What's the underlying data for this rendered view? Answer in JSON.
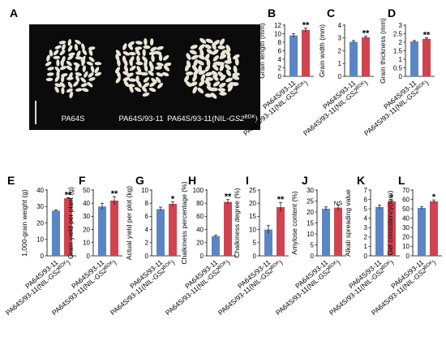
{
  "colors": {
    "blue": "#5b86c4",
    "red": "#d1434f",
    "axis": "#000000",
    "photo_bg": "#0b0b0b",
    "grain": "#e9e6d8"
  },
  "photo": {
    "panel_letter": "A",
    "labels": [
      "PA64S",
      "PA64S/93-11",
      "PA64S/93-11(NIL-"
    ],
    "gene": "GS2",
    "allele": "BDK",
    "label_close": ")"
  },
  "cat_labels": {
    "a": "PA64S/93-11",
    "b_prefix": "PA64S/93-11(NIL-",
    "gene": "GS2",
    "allele": "BDK",
    "b_suffix": ")"
  },
  "chart_data": [
    {
      "panel": "B",
      "type": "bar",
      "ylabel": "Grain length (mm)",
      "ylim": [
        0,
        12
      ],
      "yticks": [
        0,
        2,
        4,
        6,
        8,
        10,
        12
      ],
      "categories": [
        "PA64S/93-11",
        "PA64S/93-11(NIL-GS2BDK)"
      ],
      "values": [
        9.6,
        10.9
      ],
      "errors": [
        0.4,
        0.4
      ],
      "significance": "**"
    },
    {
      "panel": "C",
      "type": "bar",
      "ylabel": "Grain width (mm)",
      "ylim": [
        0,
        4
      ],
      "yticks": [
        0,
        1,
        2,
        3,
        4
      ],
      "categories": [
        "PA64S/93-11",
        "PA64S/93-11(NIL-GS2BDK)"
      ],
      "values": [
        2.7,
        3.05
      ],
      "errors": [
        0.1,
        0.1
      ],
      "significance": "**"
    },
    {
      "panel": "D",
      "type": "bar",
      "ylabel": "Grain thickness (mm)",
      "ylim": [
        0,
        3
      ],
      "yticks": [
        0,
        0.5,
        1,
        1.5,
        2,
        2.5,
        3
      ],
      "categories": [
        "PA64S/93-11",
        "PA64S/93-11(NIL-GS2BDK)"
      ],
      "values": [
        2.05,
        2.2
      ],
      "errors": [
        0.05,
        0.07
      ],
      "significance": "**"
    },
    {
      "panel": "E",
      "type": "bar",
      "ylabel": "1,000-grain weight (g)",
      "ylim": [
        0,
        40
      ],
      "yticks": [
        0,
        10,
        20,
        30,
        40
      ],
      "categories": [
        "PA64S/93-11",
        "PA64S/93-11(NIL-GS2BDK)"
      ],
      "values": [
        27.5,
        35
      ],
      "errors": [
        0.3,
        0.4
      ],
      "significance": "**"
    },
    {
      "panel": "F",
      "type": "bar",
      "ylabel": "Grain yield per plant (g)",
      "ylim": [
        0,
        50
      ],
      "yticks": [
        0,
        10,
        20,
        30,
        40,
        50
      ],
      "categories": [
        "PA64S/93-11",
        "PA64S/93-11(NIL-GS2BDK)"
      ],
      "values": [
        37.5,
        42
      ],
      "errors": [
        2.5,
        3
      ],
      "significance": "**"
    },
    {
      "panel": "G",
      "type": "bar",
      "ylabel": "Actual yield per plot (kg)",
      "ylim": [
        0,
        10
      ],
      "yticks": [
        0,
        2,
        4,
        6,
        8,
        10
      ],
      "categories": [
        "PA64S/93-11",
        "PA64S/93-11(NIL-GS2BDK)"
      ],
      "values": [
        7.1,
        7.9
      ],
      "errors": [
        0.3,
        0.3
      ],
      "significance": "*"
    },
    {
      "panel": "H",
      "type": "bar",
      "ylabel": "Chalkiness percentage (%)",
      "ylim": [
        0,
        100
      ],
      "yticks": [
        0,
        20,
        40,
        60,
        80,
        100
      ],
      "categories": [
        "PA64S/93-11",
        "PA64S/93-11(NIL-GS2BDK)"
      ],
      "values": [
        30,
        82
      ],
      "errors": [
        1.5,
        3.5
      ],
      "significance": "**"
    },
    {
      "panel": "I",
      "type": "bar",
      "ylabel": "Chalkiness degree (%)",
      "ylim": [
        0,
        25
      ],
      "yticks": [
        0,
        5,
        10,
        15,
        20,
        25
      ],
      "categories": [
        "PA64S/93-11",
        "PA64S/93-11(NIL-GS2BDK)"
      ],
      "values": [
        10,
        18.5
      ],
      "errors": [
        1.5,
        1.8
      ],
      "significance": "**"
    },
    {
      "panel": "J",
      "type": "bar",
      "ylabel": "Amylose content (%)",
      "ylim": [
        0,
        30
      ],
      "yticks": [
        0,
        5,
        10,
        15,
        20,
        25,
        30
      ],
      "categories": [
        "PA64S/93-11",
        "PA64S/93-11(NIL-GS2BDK)"
      ],
      "values": [
        21.5,
        22
      ],
      "errors": [
        0.8,
        1.2
      ],
      "significance": "NS"
    },
    {
      "panel": "K",
      "type": "bar",
      "ylabel": "Alkali spreading value",
      "ylim": [
        0,
        7
      ],
      "yticks": [
        0,
        1,
        2,
        3,
        4,
        5,
        6,
        7
      ],
      "categories": [
        "PA64S/93-11",
        "PA64S/93-11(NIL-GS2BDK)"
      ],
      "values": [
        5.2,
        5.8
      ],
      "errors": [
        0.2,
        0.1
      ],
      "significance": "*"
    },
    {
      "panel": "L",
      "type": "bar",
      "ylabel": "Gel consistency(mm)",
      "ylim": [
        0,
        70
      ],
      "yticks": [
        0,
        10,
        20,
        30,
        40,
        50,
        60,
        70
      ],
      "categories": [
        "PA64S/93-11",
        "PA64S/93-11(NIL-GS2BDK)"
      ],
      "values": [
        51,
        58
      ],
      "errors": [
        1.5,
        1.5
      ],
      "significance": "*"
    }
  ]
}
